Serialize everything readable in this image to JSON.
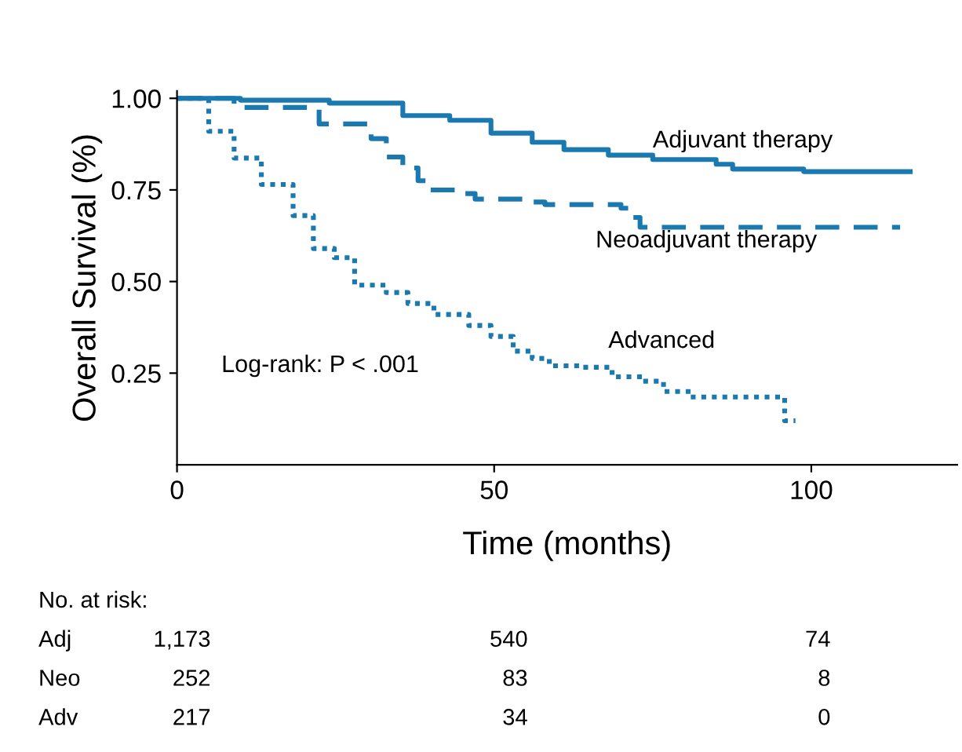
{
  "chart_data": {
    "type": "step",
    "xlabel": "Time (months)",
    "ylabel": "Overall Survival (%)",
    "xlim": [
      0,
      123
    ],
    "ylim": [
      0,
      1.02
    ],
    "xticks": [
      0,
      50,
      100
    ],
    "yticks": [
      {
        "value": 0.25,
        "label": "0.25"
      },
      {
        "value": 0.5,
        "label": "0.50"
      },
      {
        "value": 0.75,
        "label": "0.75"
      },
      {
        "value": 1.0,
        "label": "1.00"
      }
    ],
    "grid": false,
    "legend": false,
    "series": [
      {
        "name": "Adjuvant therapy",
        "color": "#1a7ab0",
        "line_style": "solid",
        "x": [
          0,
          10,
          24,
          35.6,
          43,
          49.5,
          56,
          61,
          68,
          75,
          85,
          87.6,
          98.8,
          115.6
        ],
        "values": [
          1.0,
          0.995,
          0.987,
          0.953,
          0.94,
          0.905,
          0.88,
          0.86,
          0.845,
          0.833,
          0.82,
          0.807,
          0.8,
          0.8
        ]
      },
      {
        "name": "Neoadjuvant therapy",
        "color": "#1a7ab0",
        "line_style": "dashed",
        "x": [
          0,
          9,
          22.4,
          30.6,
          33,
          35.6,
          38,
          39.7,
          43.8,
          47,
          56,
          58,
          70,
          71.5,
          73,
          114
        ],
        "values": [
          1.0,
          0.975,
          0.93,
          0.89,
          0.84,
          0.81,
          0.775,
          0.75,
          0.74,
          0.725,
          0.717,
          0.71,
          0.7,
          0.675,
          0.648,
          0.648
        ]
      },
      {
        "name": "Advanced",
        "color": "#1a7ab0",
        "line_style": "dotted",
        "x": [
          0,
          5,
          9,
          13.3,
          18.3,
          21.5,
          24.8,
          28,
          33,
          36.4,
          40.5,
          46,
          49.5,
          53,
          56,
          58.7,
          64,
          68.6,
          73.5,
          76.7,
          81,
          95.8,
          97.5
        ],
        "values": [
          1.0,
          0.91,
          0.837,
          0.765,
          0.68,
          0.59,
          0.565,
          0.49,
          0.47,
          0.44,
          0.41,
          0.38,
          0.35,
          0.31,
          0.29,
          0.27,
          0.266,
          0.24,
          0.228,
          0.2,
          0.185,
          0.12,
          0.12
        ]
      }
    ],
    "annotations": [
      "Log-rank: P < .001",
      "No. at risk:",
      "Adj",
      "1,173",
      "540",
      "74",
      "Neo",
      "252",
      "83",
      "8",
      "Adv",
      "217",
      "34",
      "0"
    ]
  }
}
